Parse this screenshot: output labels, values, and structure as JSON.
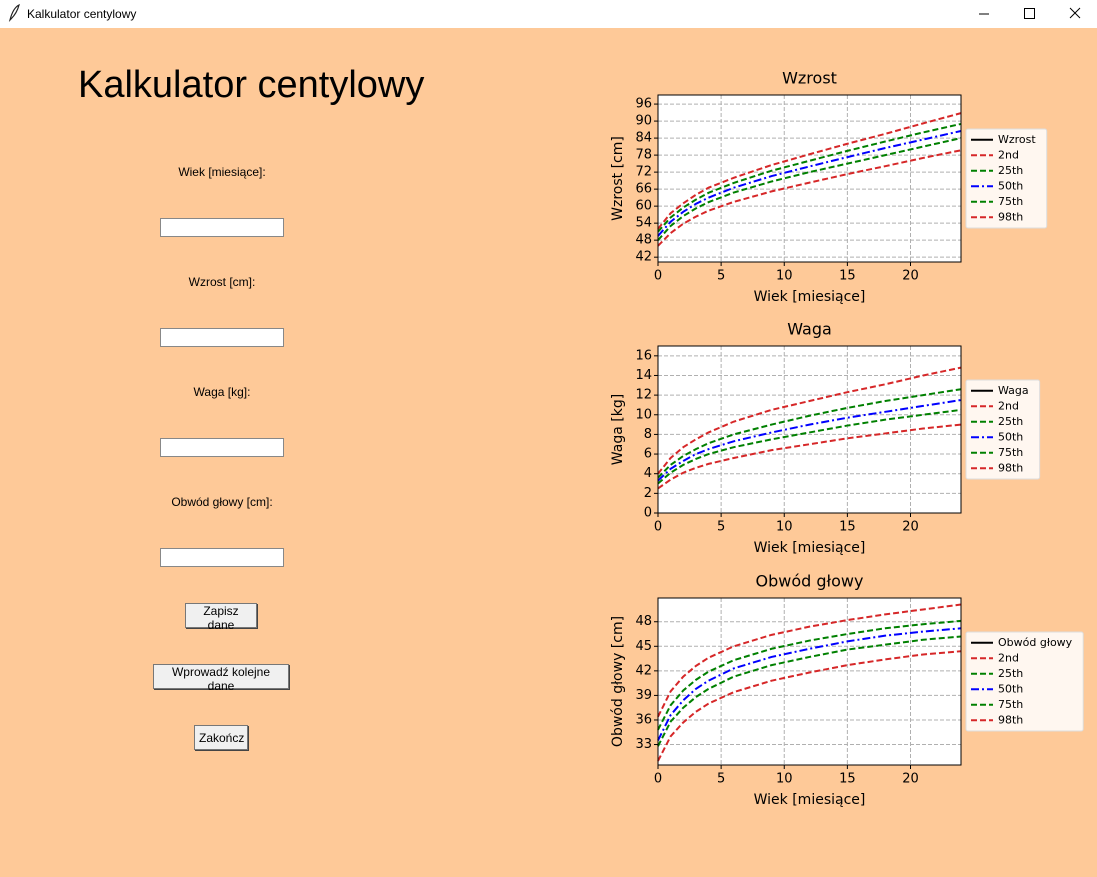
{
  "window": {
    "title": "Kalkulator centylowy"
  },
  "form": {
    "heading": "Kalkulator centylowy",
    "fields": [
      "Wiek [miesiące]:",
      "Wzrost [cm]:",
      "Waga [kg]:",
      "Obwód głowy [cm]:"
    ],
    "buttons": [
      "Zapisz dane",
      "Wprowadź kolejne dane",
      "Zakończ"
    ]
  },
  "chart_data": [
    {
      "type": "line",
      "title": "Wzrost",
      "x_label": "Wiek [miesiące]",
      "y_label": "Wzrost [cm]",
      "x": [
        0,
        1,
        2,
        3,
        4,
        6,
        9,
        12,
        15,
        18,
        21,
        24
      ],
      "xlim": [
        0,
        24
      ],
      "xticks": [
        0,
        5,
        10,
        15,
        20
      ],
      "ylim": [
        40.3,
        99.2
      ],
      "yticks": [
        42,
        48,
        54,
        60,
        66,
        72,
        78,
        84,
        90,
        96
      ],
      "grid": true,
      "legend": "right",
      "series": [
        {
          "name": "Wzrost",
          "color": "#000000",
          "linestyle": "solid",
          "values": [
            null,
            null,
            null,
            null,
            null,
            null,
            null,
            null,
            null,
            null,
            null,
            null
          ]
        },
        {
          "name": "2nd",
          "color": "#d62728",
          "linestyle": "dashed",
          "values": [
            46,
            50.5,
            53.8,
            56.3,
            58.4,
            61.5,
            65.2,
            68.3,
            71.3,
            74.1,
            77,
            79.7
          ]
        },
        {
          "name": "25th",
          "color": "#008000",
          "linestyle": "dashed",
          "values": [
            48,
            53,
            56.5,
            59.2,
            61.4,
            64.8,
            68.7,
            72,
            75,
            78,
            81,
            84
          ]
        },
        {
          "name": "50th",
          "color": "#0000ff",
          "linestyle": "dashdot",
          "values": [
            49.5,
            54.5,
            58,
            60.8,
            63,
            66.5,
            70.6,
            74,
            77.3,
            80.5,
            83.5,
            86.5
          ]
        },
        {
          "name": "75th",
          "color": "#008000",
          "linestyle": "dashed",
          "values": [
            51,
            56,
            59.5,
            62.3,
            64.7,
            68.2,
            72.5,
            76,
            79.5,
            82.8,
            86,
            89
          ]
        },
        {
          "name": "98th",
          "color": "#d62728",
          "linestyle": "dashed",
          "values": [
            52,
            57.5,
            61,
            64,
            66.5,
            70,
            74.5,
            78.3,
            82,
            85.5,
            89.2,
            92.8
          ]
        }
      ]
    },
    {
      "type": "line",
      "title": "Waga",
      "x_label": "Wiek [miesiące]",
      "y_label": "Waga [kg]",
      "x": [
        0,
        1,
        2,
        3,
        4,
        6,
        9,
        12,
        15,
        18,
        21,
        24
      ],
      "xlim": [
        0,
        24
      ],
      "xticks": [
        0,
        5,
        10,
        15,
        20
      ],
      "ylim": [
        0,
        17
      ],
      "yticks": [
        0,
        2,
        4,
        6,
        8,
        10,
        12,
        14,
        16
      ],
      "grid": true,
      "legend": "right",
      "series": [
        {
          "name": "Waga",
          "color": "#000000",
          "linestyle": "solid",
          "values": [
            null,
            null,
            null,
            null,
            null,
            null,
            null,
            null,
            null,
            null,
            null,
            null
          ]
        },
        {
          "name": "2nd",
          "color": "#d62728",
          "linestyle": "dashed",
          "values": [
            2.5,
            3.4,
            4.1,
            4.6,
            5,
            5.6,
            6.4,
            7,
            7.6,
            8.1,
            8.6,
            9
          ]
        },
        {
          "name": "25th",
          "color": "#008000",
          "linestyle": "dashed",
          "values": [
            3,
            4.1,
            4.9,
            5.5,
            6,
            6.7,
            7.5,
            8.2,
            8.9,
            9.5,
            10,
            10.5
          ]
        },
        {
          "name": "50th",
          "color": "#0000ff",
          "linestyle": "dashdot",
          "values": [
            3.3,
            4.5,
            5.3,
            6,
            6.5,
            7.3,
            8.2,
            9,
            9.7,
            10.3,
            10.9,
            11.5
          ]
        },
        {
          "name": "75th",
          "color": "#008000",
          "linestyle": "dashed",
          "values": [
            3.6,
            4.9,
            5.8,
            6.5,
            7.1,
            8,
            9,
            9.9,
            10.7,
            11.4,
            12,
            12.6
          ]
        },
        {
          "name": "98th",
          "color": "#d62728",
          "linestyle": "dashed",
          "values": [
            4,
            5.6,
            6.7,
            7.5,
            8.2,
            9.3,
            10.5,
            11.4,
            12.3,
            13.1,
            14,
            14.8
          ]
        }
      ]
    },
    {
      "type": "line",
      "title": "Obwód głowy",
      "x_label": "Wiek [miesiące]",
      "y_label": "Obwód głowy [cm]",
      "x": [
        0,
        1,
        2,
        3,
        4,
        6,
        9,
        12,
        15,
        18,
        21,
        24
      ],
      "xlim": [
        0,
        24
      ],
      "xticks": [
        0,
        5,
        10,
        15,
        20
      ],
      "ylim": [
        30.5,
        50.9
      ],
      "yticks": [
        33,
        36,
        39,
        42,
        45,
        48
      ],
      "grid": true,
      "legend": "right",
      "series": [
        {
          "name": "Obwód głowy",
          "color": "#000000",
          "linestyle": "solid",
          "values": [
            null,
            null,
            null,
            null,
            null,
            null,
            null,
            null,
            null,
            null,
            null,
            null
          ]
        },
        {
          "name": "2nd",
          "color": "#d62728",
          "linestyle": "dashed",
          "values": [
            31,
            34,
            35.7,
            37,
            38,
            39.4,
            40.8,
            41.8,
            42.7,
            43.4,
            44,
            44.4
          ]
        },
        {
          "name": "25th",
          "color": "#008000",
          "linestyle": "dashed",
          "values": [
            32.8,
            35.8,
            37.5,
            38.8,
            39.8,
            41.3,
            42.7,
            43.7,
            44.6,
            45.2,
            45.8,
            46.2
          ]
        },
        {
          "name": "50th",
          "color": "#0000ff",
          "linestyle": "dashdot",
          "values": [
            33.5,
            36.6,
            38.4,
            39.8,
            40.8,
            42.3,
            43.7,
            44.7,
            45.6,
            46.3,
            46.8,
            47.2
          ]
        },
        {
          "name": "75th",
          "color": "#008000",
          "linestyle": "dashed",
          "values": [
            34.8,
            37.8,
            39.6,
            40.9,
            41.9,
            43.3,
            44.7,
            45.7,
            46.5,
            47.2,
            47.7,
            48.1
          ]
        },
        {
          "name": "98th",
          "color": "#d62728",
          "linestyle": "dashed",
          "values": [
            36.4,
            39.5,
            41.3,
            42.6,
            43.6,
            45,
            46.4,
            47.4,
            48.2,
            48.9,
            49.5,
            50.1
          ]
        }
      ]
    }
  ]
}
